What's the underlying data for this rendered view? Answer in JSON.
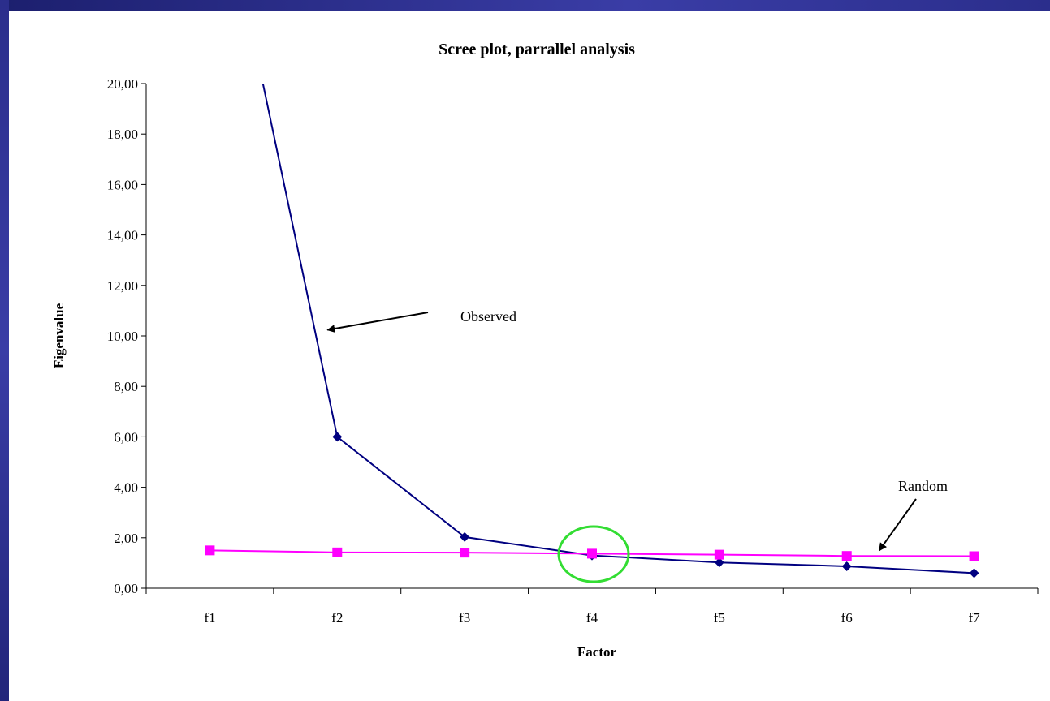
{
  "colors": {
    "frame": "#2b2e8c",
    "observed": "#000080",
    "random": "#ff00ff",
    "highlight": "#33dd33",
    "axis": "#000000"
  },
  "chart_data": {
    "type": "line",
    "title": "Scree plot, parrallel analysis",
    "xlabel": "Factor",
    "ylabel": "Eigenvalue",
    "categories": [
      "f1",
      "f2",
      "f3",
      "f4",
      "f5",
      "f6",
      "f7"
    ],
    "ylim": [
      0,
      20
    ],
    "yticks": [
      0,
      2,
      4,
      6,
      8,
      10,
      12,
      14,
      16,
      18,
      20
    ],
    "ytick_labels": [
      "0,00",
      "2,00",
      "4,00",
      "6,00",
      "8,00",
      "10,00",
      "12,00",
      "14,00",
      "16,00",
      "18,00",
      "20,00"
    ],
    "grid": false,
    "legend": "none",
    "series": [
      {
        "name": "Observed",
        "marker": "diamond",
        "values": [
          30.0,
          6.0,
          2.03,
          1.3,
          1.02,
          0.87,
          0.6
        ]
      },
      {
        "name": "Random",
        "marker": "square",
        "values": [
          1.5,
          1.42,
          1.41,
          1.37,
          1.33,
          1.28,
          1.27
        ]
      }
    ],
    "annotations": [
      {
        "text": "Observed",
        "series": "Observed",
        "arrow_to": {
          "x": "f2",
          "y": 10.3
        }
      },
      {
        "text": "Random",
        "series": "Random",
        "arrow_to": {
          "x": "f6",
          "y": 1.3
        }
      }
    ],
    "highlight": {
      "x": "f4",
      "y": 1.35,
      "shape": "circle"
    }
  }
}
